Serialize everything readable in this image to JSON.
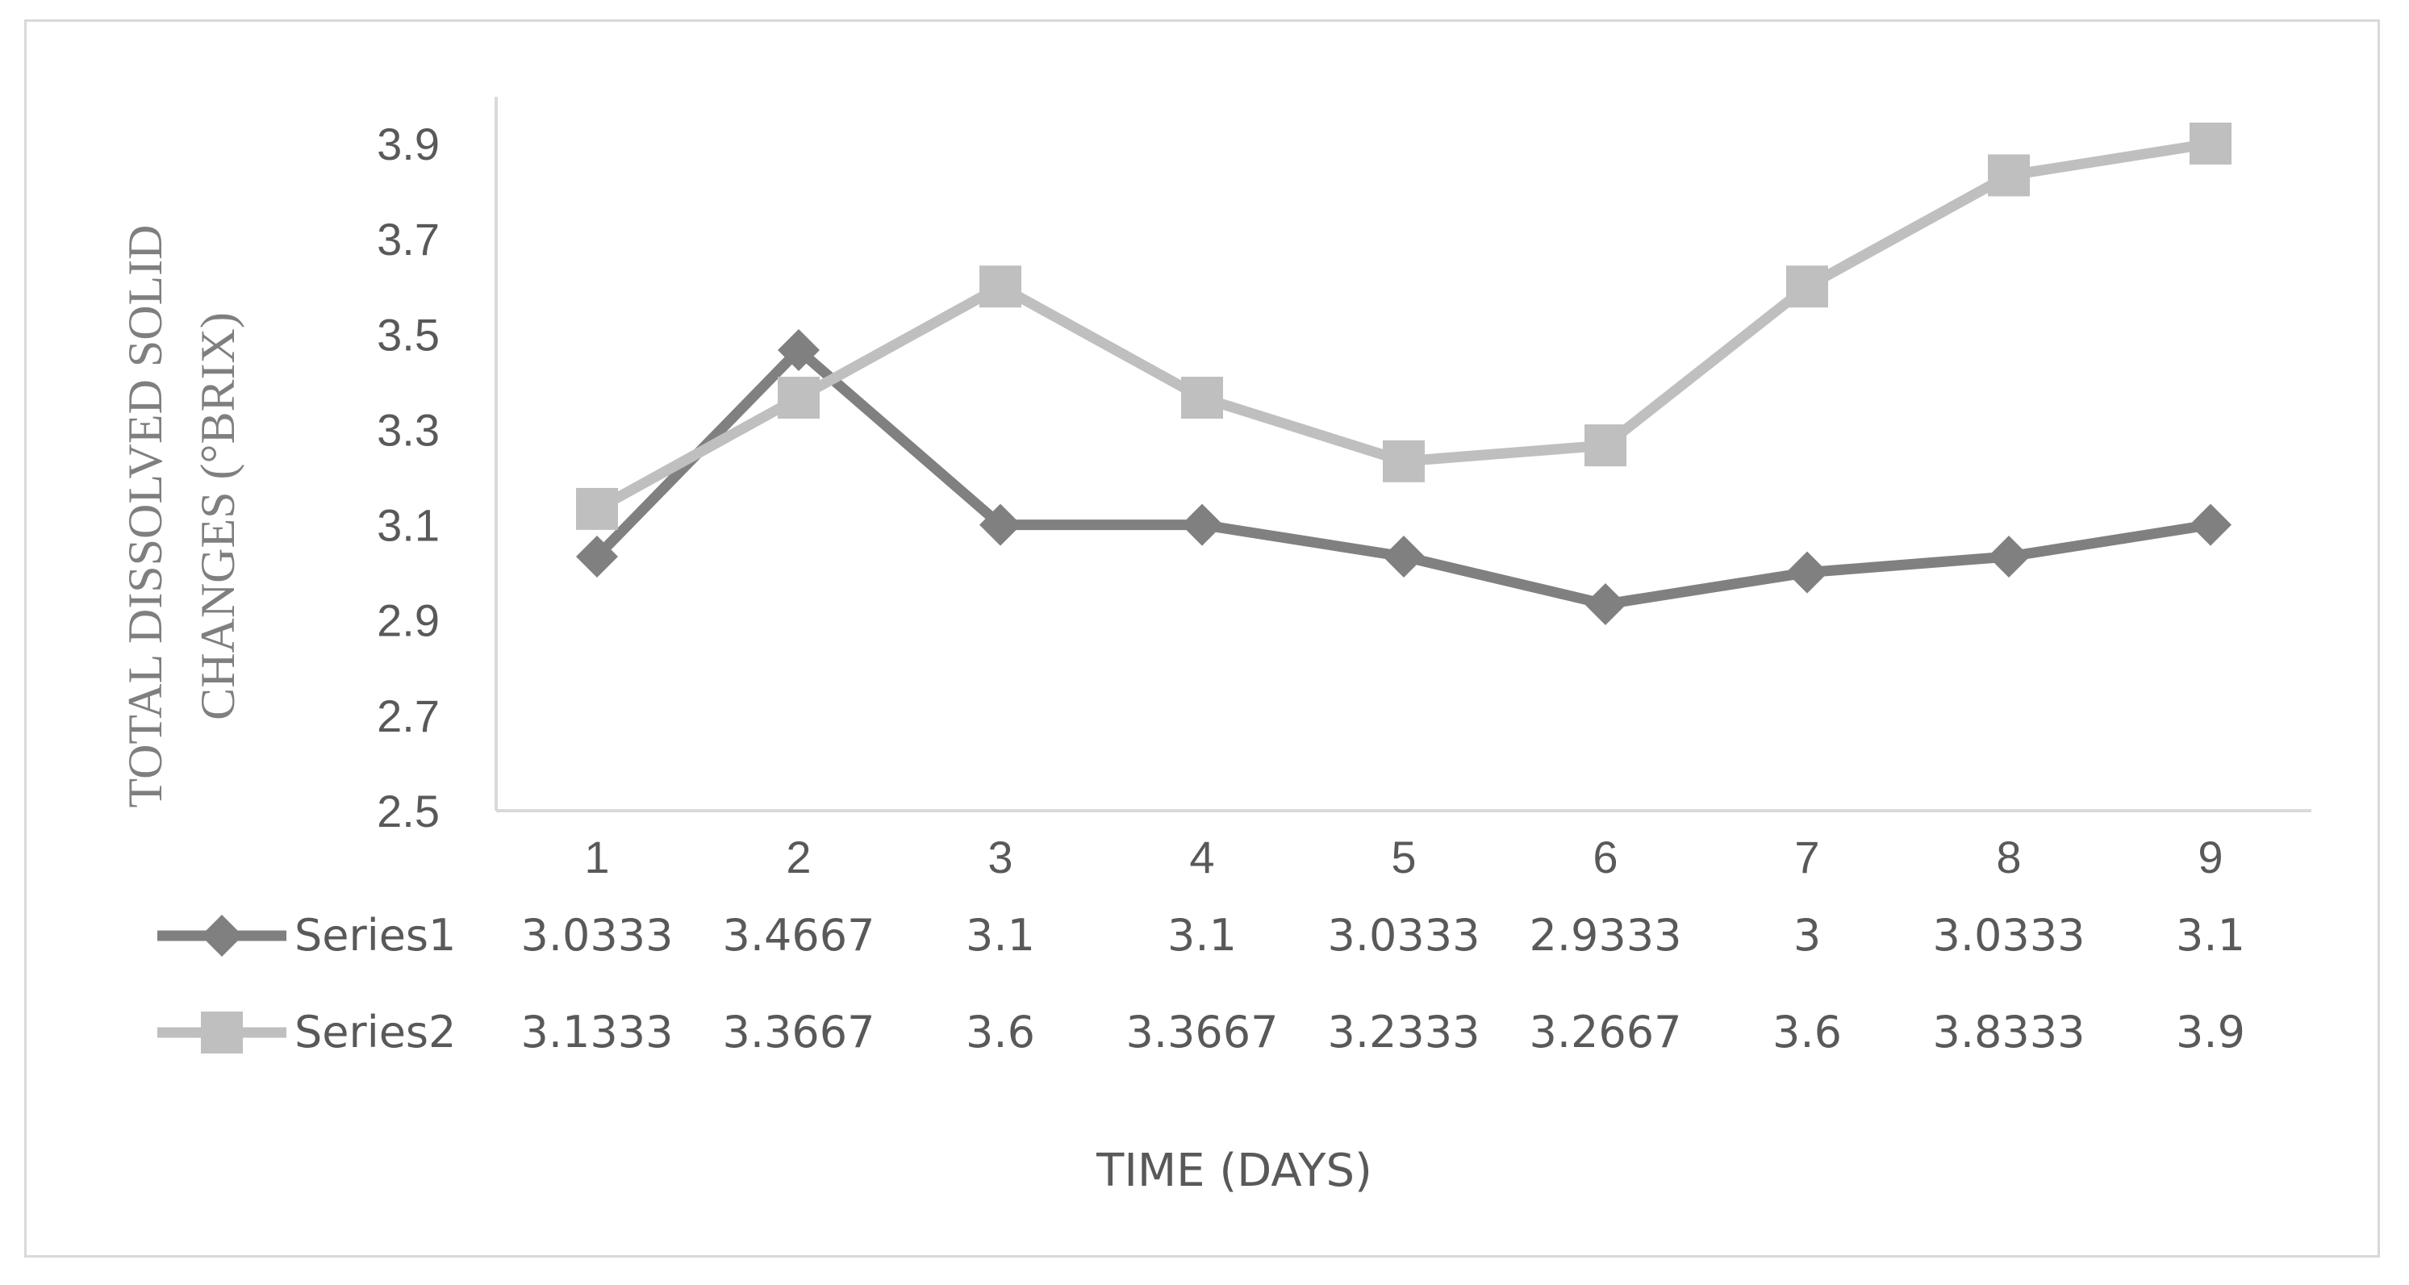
{
  "chart_data": {
    "type": "line",
    "title": "",
    "xlabel": "TIME (DAYS)",
    "ylabel_lines": [
      "TOTAL DISSOLVED SOLID",
      "CHANGES (°BRIX)"
    ],
    "categories": [
      "1",
      "2",
      "3",
      "4",
      "5",
      "6",
      "7",
      "8",
      "9"
    ],
    "ylim": [
      2.5,
      3.9
    ],
    "yticks": [
      2.5,
      2.7,
      2.9,
      3.1,
      3.3,
      3.5,
      3.7,
      3.9
    ],
    "ytick_labels": [
      "2.5",
      "2.7",
      "2.9",
      "3.1",
      "3.3",
      "3.5",
      "3.7",
      "3.9"
    ],
    "grid": false,
    "legend_position": "data-table",
    "series": [
      {
        "name": "Series1",
        "color": "#808080",
        "marker": "diamond",
        "values": [
          3.0333,
          3.4667,
          3.1,
          3.1,
          3.0333,
          2.9333,
          3,
          3.0333,
          3.1
        ],
        "value_labels": [
          "3.0333",
          "3.4667",
          "3.1",
          "3.1",
          "3.0333",
          "2.9333",
          "3",
          "3.0333",
          "3.1"
        ]
      },
      {
        "name": "Series2",
        "color": "#bfbfbf",
        "marker": "square",
        "values": [
          3.1333,
          3.3667,
          3.6,
          3.3667,
          3.2333,
          3.2667,
          3.6,
          3.8333,
          3.9
        ],
        "value_labels": [
          "3.1333",
          "3.3667",
          "3.6",
          "3.3667",
          "3.2333",
          "3.2667",
          "3.6",
          "3.8333",
          "3.9"
        ]
      }
    ]
  }
}
